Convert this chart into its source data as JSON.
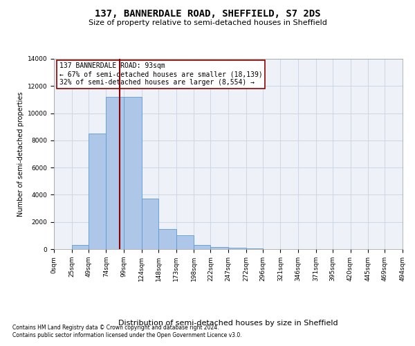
{
  "title": "137, BANNERDALE ROAD, SHEFFIELD, S7 2DS",
  "subtitle": "Size of property relative to semi-detached houses in Sheffield",
  "xlabel": "Distribution of semi-detached houses by size in Sheffield",
  "ylabel": "Number of semi-detached properties",
  "footnote1": "Contains HM Land Registry data © Crown copyright and database right 2024.",
  "footnote2": "Contains public sector information licensed under the Open Government Licence v3.0.",
  "annotation_title": "137 BANNERDALE ROAD: 93sqm",
  "annotation_line1": "← 67% of semi-detached houses are smaller (18,139)",
  "annotation_line2": "32% of semi-detached houses are larger (8,554) →",
  "property_size": 93,
  "bin_edges": [
    0,
    25,
    49,
    74,
    99,
    124,
    148,
    173,
    198,
    222,
    247,
    272,
    296,
    321,
    346,
    371,
    395,
    420,
    445,
    469,
    494
  ],
  "bar_heights": [
    0,
    300,
    8500,
    11200,
    11200,
    3700,
    1500,
    1000,
    300,
    150,
    80,
    30,
    15,
    10,
    5,
    3,
    2,
    1,
    1,
    0
  ],
  "bar_color": "#aec6e8",
  "bar_edge_color": "#5b9bd5",
  "vline_color": "#8b0000",
  "grid_color": "#d0d8e8",
  "background_color": "#eef2f8",
  "ylim": [
    0,
    14000
  ],
  "yticks": [
    0,
    2000,
    4000,
    6000,
    8000,
    10000,
    12000,
    14000
  ],
  "title_fontsize": 10,
  "subtitle_fontsize": 8,
  "ylabel_fontsize": 7,
  "xlabel_fontsize": 8,
  "tick_fontsize": 6.5,
  "annotation_fontsize": 7,
  "footnote_fontsize": 5.5
}
